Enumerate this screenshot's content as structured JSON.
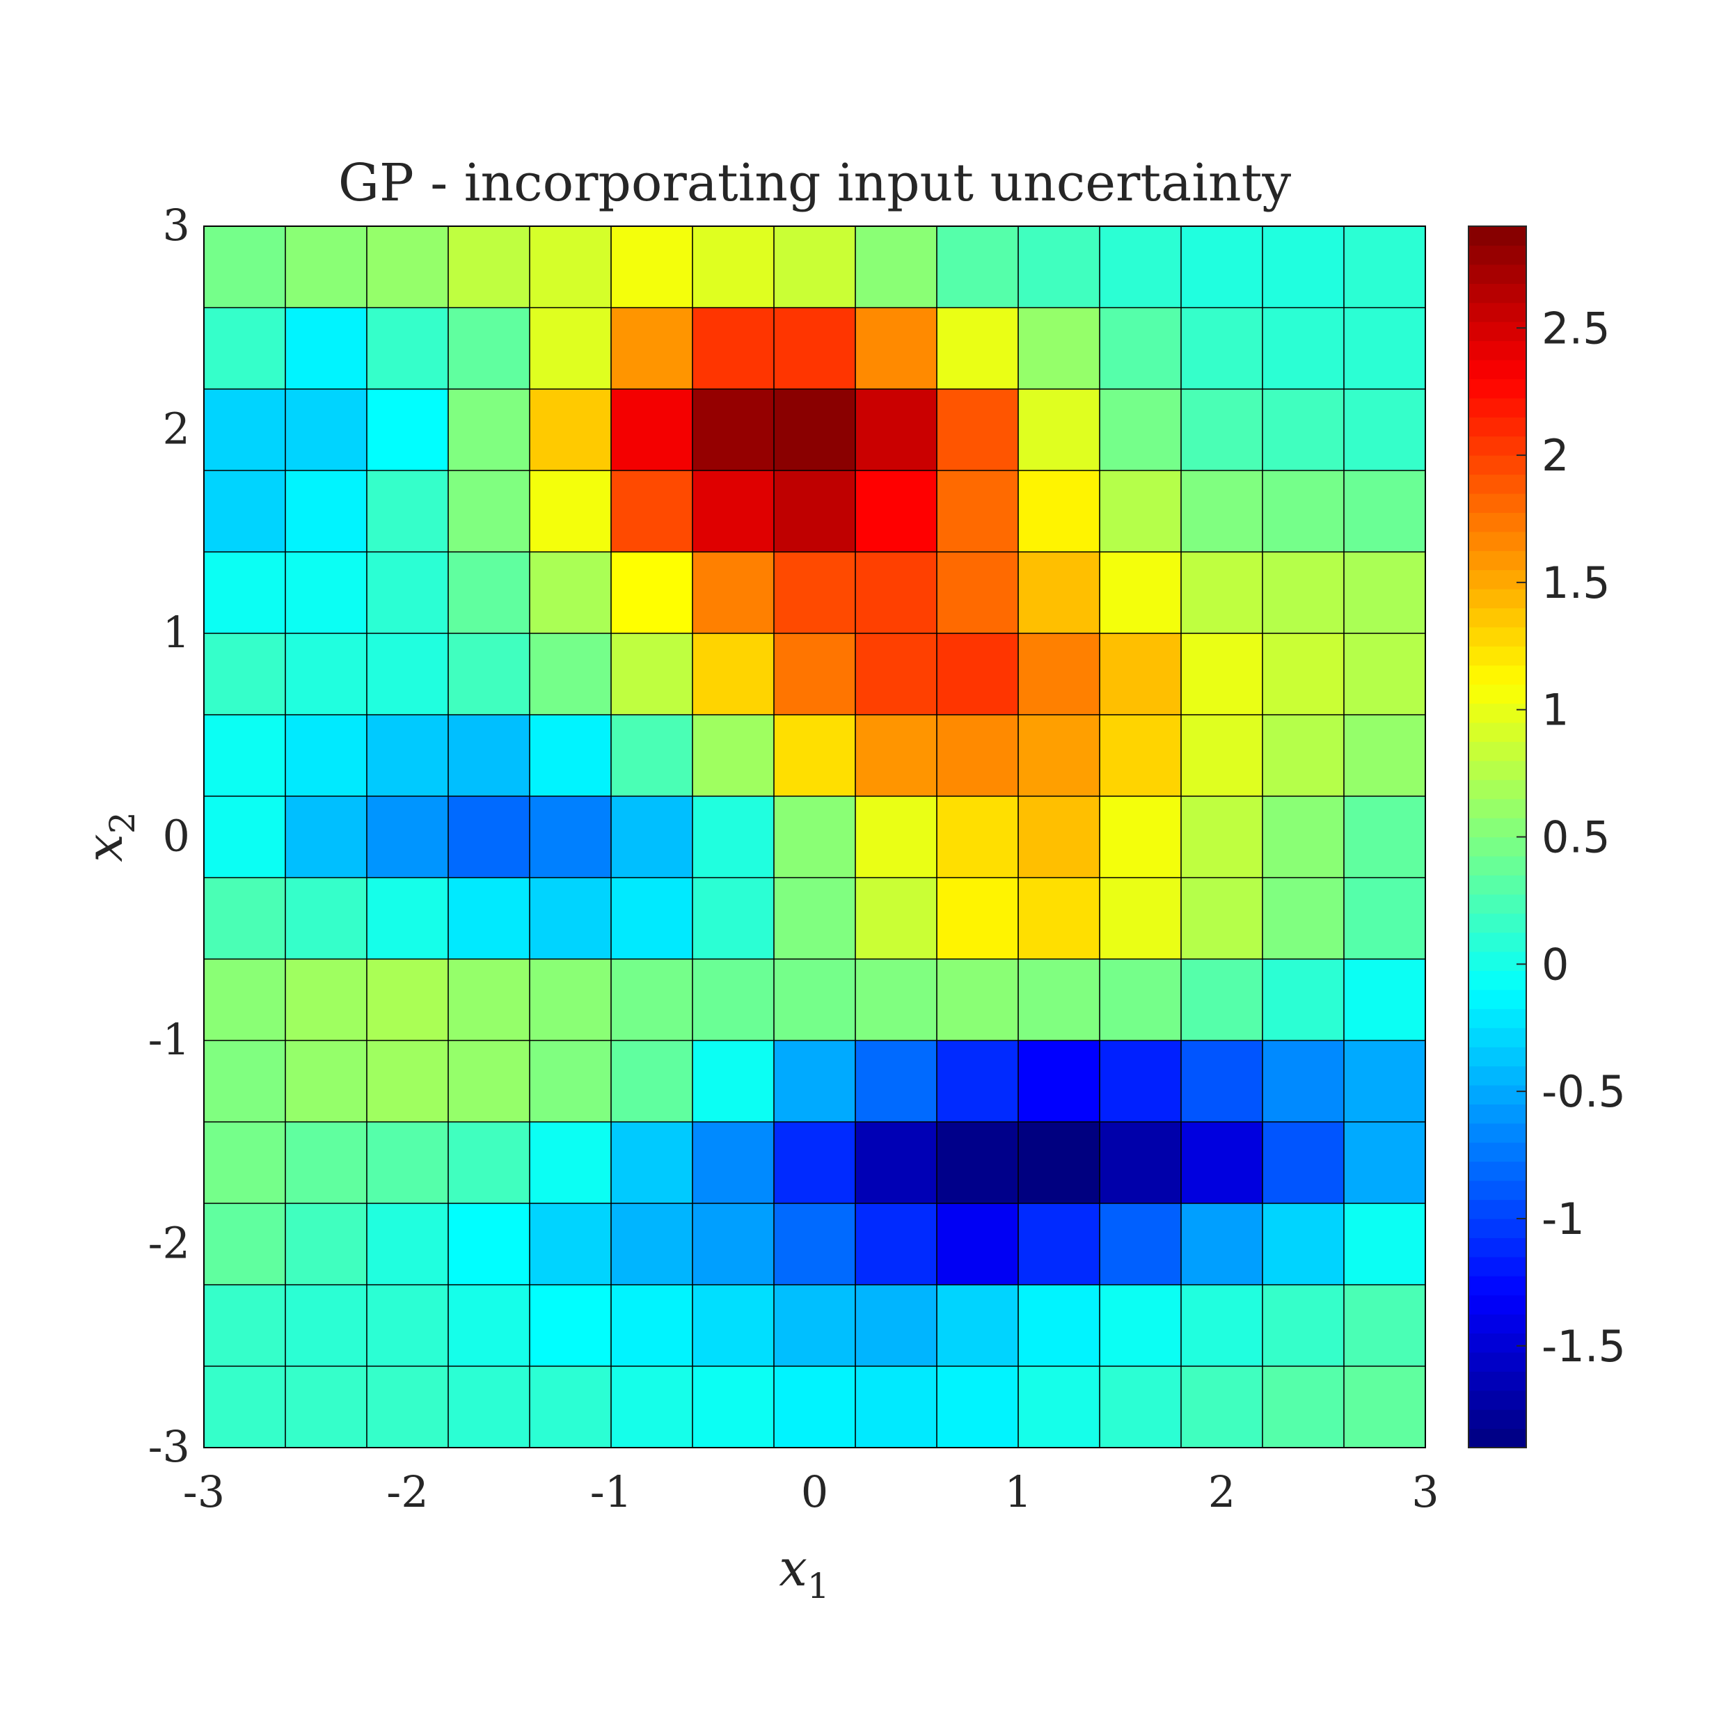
{
  "chart_data": {
    "type": "heatmap",
    "title": "GP - incorporating input uncertainty",
    "xlabel": {
      "base": "x",
      "sub": "1"
    },
    "ylabel": {
      "base": "x",
      "sub": "2"
    },
    "xlim": [
      -3,
      3
    ],
    "ylim": [
      -3,
      3
    ],
    "xticks": [
      -3,
      -2,
      -1,
      0,
      1,
      2,
      3
    ],
    "xtick_labels": [
      "-3",
      "-2",
      "-1",
      "0",
      "1",
      "2",
      "3"
    ],
    "yticks": [
      -3,
      -2,
      -1,
      0,
      1,
      2,
      3
    ],
    "ytick_labels": [
      "-3",
      "-2",
      "-1",
      "0",
      "1",
      "2",
      "3"
    ],
    "colormap": "jet",
    "clim": [
      -1.9,
      2.9
    ],
    "colorbar_ticks": [
      -1.5,
      -1,
      -0.5,
      0,
      0.5,
      1,
      1.5,
      2,
      2.5
    ],
    "colorbar_tick_labels": [
      "-1.5",
      "-1",
      "-0.5",
      "0",
      "0.5",
      "1",
      "1.5",
      "2",
      "2.5"
    ],
    "grid": true,
    "rows": 15,
    "cols": 15,
    "row_order": "top-to-bottom (x2 from 3 down to -3)",
    "values": [
      [
        0.45,
        0.55,
        0.6,
        0.8,
        0.9,
        1.05,
        0.95,
        0.85,
        0.55,
        0.3,
        0.2,
        0.1,
        0.05,
        0.05,
        0.1
      ],
      [
        0.15,
        -0.15,
        0.15,
        0.35,
        0.95,
        1.6,
        2.05,
        2.05,
        1.65,
        1.0,
        0.6,
        0.3,
        0.15,
        0.1,
        0.1
      ],
      [
        -0.3,
        -0.3,
        -0.1,
        0.5,
        1.35,
        2.35,
        2.8,
        2.85,
        2.55,
        1.9,
        0.95,
        0.45,
        0.25,
        0.2,
        0.15
      ],
      [
        -0.3,
        -0.15,
        0.15,
        0.5,
        1.05,
        1.95,
        2.45,
        2.6,
        2.3,
        1.8,
        1.15,
        0.75,
        0.5,
        0.45,
        0.4
      ],
      [
        -0.05,
        -0.05,
        0.1,
        0.35,
        0.7,
        1.1,
        1.7,
        1.95,
        2.0,
        1.8,
        1.4,
        1.05,
        0.8,
        0.75,
        0.7
      ],
      [
        0.15,
        0.05,
        0.05,
        0.2,
        0.45,
        0.8,
        1.3,
        1.75,
        2.0,
        2.05,
        1.7,
        1.4,
        1.0,
        0.85,
        0.75
      ],
      [
        -0.05,
        -0.2,
        -0.35,
        -0.4,
        -0.15,
        0.25,
        0.65,
        1.25,
        1.6,
        1.65,
        1.55,
        1.3,
        0.95,
        0.75,
        0.6
      ],
      [
        -0.05,
        -0.4,
        -0.6,
        -0.8,
        -0.7,
        -0.4,
        0.05,
        0.55,
        1.0,
        1.25,
        1.4,
        1.05,
        0.8,
        0.55,
        0.35
      ],
      [
        0.25,
        0.15,
        0.0,
        -0.2,
        -0.3,
        -0.2,
        0.1,
        0.5,
        0.85,
        1.15,
        1.25,
        1.0,
        0.75,
        0.5,
        0.3
      ],
      [
        0.55,
        0.65,
        0.7,
        0.6,
        0.55,
        0.45,
        0.4,
        0.45,
        0.5,
        0.55,
        0.5,
        0.45,
        0.3,
        0.1,
        -0.05
      ],
      [
        0.5,
        0.6,
        0.65,
        0.6,
        0.5,
        0.35,
        -0.05,
        -0.5,
        -0.8,
        -1.1,
        -1.3,
        -1.15,
        -0.9,
        -0.65,
        -0.5
      ],
      [
        0.45,
        0.35,
        0.3,
        0.2,
        -0.05,
        -0.35,
        -0.65,
        -1.1,
        -1.65,
        -1.85,
        -1.9,
        -1.7,
        -1.45,
        -0.9,
        -0.5
      ],
      [
        0.35,
        0.2,
        0.05,
        -0.1,
        -0.3,
        -0.45,
        -0.55,
        -0.8,
        -1.1,
        -1.35,
        -1.1,
        -0.85,
        -0.55,
        -0.3,
        -0.05
      ],
      [
        0.15,
        0.1,
        0.1,
        0.0,
        -0.1,
        -0.15,
        -0.25,
        -0.4,
        -0.45,
        -0.3,
        -0.15,
        -0.05,
        0.05,
        0.15,
        0.25
      ],
      [
        0.15,
        0.15,
        0.15,
        0.1,
        0.1,
        0.0,
        -0.05,
        -0.15,
        -0.2,
        -0.15,
        0.0,
        0.1,
        0.2,
        0.3,
        0.35
      ]
    ]
  }
}
